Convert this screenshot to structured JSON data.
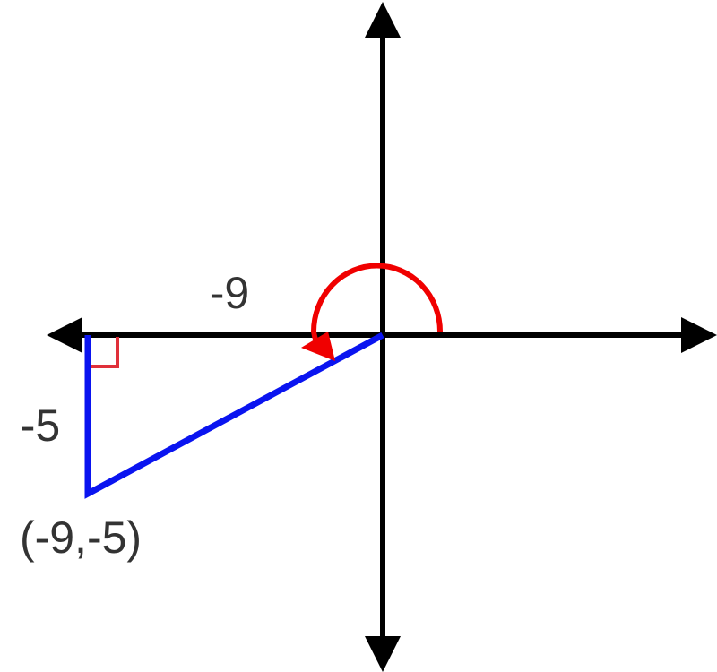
{
  "labels": {
    "horizontal_leg": "-9",
    "vertical_leg": "-5",
    "point": "(-9,-5)"
  }
}
